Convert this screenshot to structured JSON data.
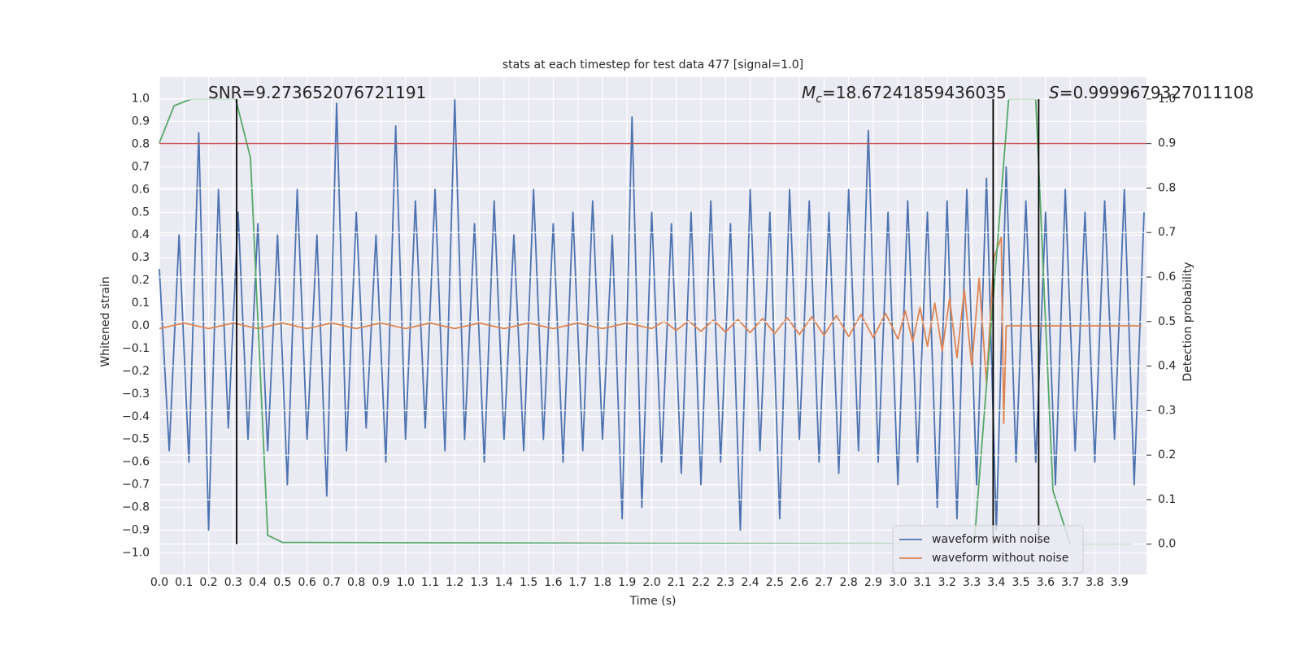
{
  "chart_data": {
    "type": "line",
    "title": "stats at each timestep for test data 477 [signal=1.0]",
    "x_label": "Time (s)",
    "y_label": "Whitened strain",
    "y2_label": "Detection probability",
    "xlim": [
      0,
      4.01
    ],
    "ylim": [
      -1.095,
      1.095
    ],
    "y2lim": [
      -0.068,
      1.049
    ],
    "grid": true,
    "legend": "lower right",
    "xticks": [
      {
        "value": 0.0,
        "label": "0.0"
      },
      {
        "value": 0.1,
        "label": "0.1"
      },
      {
        "value": 0.2,
        "label": "0.2"
      },
      {
        "value": 0.3,
        "label": "0.3"
      },
      {
        "value": 0.4,
        "label": "0.4"
      },
      {
        "value": 0.5,
        "label": "0.5"
      },
      {
        "value": 0.6,
        "label": "0.6"
      },
      {
        "value": 0.7,
        "label": "0.7"
      },
      {
        "value": 0.8,
        "label": "0.8"
      },
      {
        "value": 0.9,
        "label": "0.9"
      },
      {
        "value": 1.0,
        "label": "1.0"
      },
      {
        "value": 1.1,
        "label": "1.1"
      },
      {
        "value": 1.2,
        "label": "1.2"
      },
      {
        "value": 1.3,
        "label": "1.3"
      },
      {
        "value": 1.4,
        "label": "1.4"
      },
      {
        "value": 1.5,
        "label": "1.5"
      },
      {
        "value": 1.6,
        "label": "1.6"
      },
      {
        "value": 1.7,
        "label": "1.7"
      },
      {
        "value": 1.8,
        "label": "1.8"
      },
      {
        "value": 1.9,
        "label": "1.9"
      },
      {
        "value": 2.0,
        "label": "2.0"
      },
      {
        "value": 2.1,
        "label": "2.1"
      },
      {
        "value": 2.2,
        "label": "2.2"
      },
      {
        "value": 2.3,
        "label": "2.3"
      },
      {
        "value": 2.4,
        "label": "2.4"
      },
      {
        "value": 2.5,
        "label": "2.5"
      },
      {
        "value": 2.6,
        "label": "2.6"
      },
      {
        "value": 2.7,
        "label": "2.7"
      },
      {
        "value": 2.8,
        "label": "2.8"
      },
      {
        "value": 2.9,
        "label": "2.9"
      },
      {
        "value": 3.0,
        "label": "3.0"
      },
      {
        "value": 3.1,
        "label": "3.1"
      },
      {
        "value": 3.2,
        "label": "3.2"
      },
      {
        "value": 3.3,
        "label": "3.3"
      },
      {
        "value": 3.4,
        "label": "3.4"
      },
      {
        "value": 3.5,
        "label": "3.5"
      },
      {
        "value": 3.6,
        "label": "3.6"
      },
      {
        "value": 3.7,
        "label": "3.7"
      },
      {
        "value": 3.8,
        "label": "3.8"
      },
      {
        "value": 3.9,
        "label": "3.9"
      }
    ],
    "yticks": [
      {
        "value": -1.0,
        "label": "−1.0"
      },
      {
        "value": -0.9,
        "label": "−0.9"
      },
      {
        "value": -0.8,
        "label": "−0.8"
      },
      {
        "value": -0.7,
        "label": "−0.7"
      },
      {
        "value": -0.6,
        "label": "−0.6"
      },
      {
        "value": -0.5,
        "label": "−0.5"
      },
      {
        "value": -0.4,
        "label": "−0.4"
      },
      {
        "value": -0.3,
        "label": "−0.3"
      },
      {
        "value": -0.2,
        "label": "−0.2"
      },
      {
        "value": -0.1,
        "label": "−0.1"
      },
      {
        "value": 0.0,
        "label": "0.0"
      },
      {
        "value": 0.1,
        "label": "0.1"
      },
      {
        "value": 0.2,
        "label": "0.2"
      },
      {
        "value": 0.3,
        "label": "0.3"
      },
      {
        "value": 0.4,
        "label": "0.4"
      },
      {
        "value": 0.5,
        "label": "0.5"
      },
      {
        "value": 0.6,
        "label": "0.6"
      },
      {
        "value": 0.7,
        "label": "0.7"
      },
      {
        "value": 0.8,
        "label": "0.8"
      },
      {
        "value": 0.9,
        "label": "0.9"
      },
      {
        "value": 1.0,
        "label": "1.0"
      }
    ],
    "y2ticks": [
      {
        "value": 0.0,
        "label": "0.0"
      },
      {
        "value": 0.1,
        "label": "0.1"
      },
      {
        "value": 0.2,
        "label": "0.2"
      },
      {
        "value": 0.3,
        "label": "0.3"
      },
      {
        "value": 0.4,
        "label": "0.4"
      },
      {
        "value": 0.5,
        "label": "0.5"
      },
      {
        "value": 0.6,
        "label": "0.6"
      },
      {
        "value": 0.7,
        "label": "0.7"
      },
      {
        "value": 0.8,
        "label": "0.8"
      },
      {
        "value": 0.9,
        "label": "0.9"
      },
      {
        "value": 1.0,
        "label": "1.0"
      }
    ],
    "series": [
      {
        "name": "waveform with noise",
        "color": "#4c72b0",
        "x": [
          0,
          0.04,
          0.08,
          0.12,
          0.16,
          0.2,
          0.24,
          0.28,
          0.32,
          0.36,
          0.4,
          0.44,
          0.48,
          0.52,
          0.56,
          0.6,
          0.64,
          0.68,
          0.72,
          0.76,
          0.8,
          0.84,
          0.88,
          0.92,
          0.96,
          1.0,
          1.04,
          1.08,
          1.12,
          1.16,
          1.2,
          1.24,
          1.28,
          1.32,
          1.36,
          1.4,
          1.44,
          1.48,
          1.52,
          1.56,
          1.6,
          1.64,
          1.68,
          1.72,
          1.76,
          1.8,
          1.84,
          1.88,
          1.92,
          1.96,
          2.0,
          2.04,
          2.08,
          2.12,
          2.16,
          2.2,
          2.24,
          2.28,
          2.32,
          2.36,
          2.4,
          2.44,
          2.48,
          2.52,
          2.56,
          2.6,
          2.64,
          2.68,
          2.72,
          2.76,
          2.8,
          2.84,
          2.88,
          2.92,
          2.96,
          3.0,
          3.04,
          3.08,
          3.12,
          3.16,
          3.2,
          3.24,
          3.28,
          3.32,
          3.36,
          3.4,
          3.44,
          3.48,
          3.52,
          3.56,
          3.6,
          3.64,
          3.68,
          3.72,
          3.76,
          3.8,
          3.84,
          3.88,
          3.92,
          3.96,
          4.0
        ],
        "values": [
          0.25,
          -0.55,
          0.4,
          -0.6,
          0.85,
          -0.9,
          0.6,
          -0.45,
          0.5,
          -0.5,
          0.45,
          -0.55,
          0.4,
          -0.7,
          0.6,
          -0.5,
          0.4,
          -0.75,
          0.98,
          -0.55,
          0.5,
          -0.45,
          0.4,
          -0.6,
          0.88,
          -0.5,
          0.55,
          -0.45,
          0.6,
          -0.55,
          1.0,
          -0.5,
          0.45,
          -0.6,
          0.55,
          -0.5,
          0.4,
          -0.55,
          0.6,
          -0.5,
          0.45,
          -0.6,
          0.5,
          -0.55,
          0.55,
          -0.5,
          0.4,
          -0.85,
          0.92,
          -0.8,
          0.5,
          -0.6,
          0.45,
          -0.65,
          0.5,
          -0.7,
          0.55,
          -0.6,
          0.45,
          -0.9,
          0.6,
          -0.55,
          0.5,
          -0.85,
          0.6,
          -0.5,
          0.55,
          -0.6,
          0.5,
          -0.65,
          0.6,
          -0.55,
          0.86,
          -0.6,
          0.5,
          -0.7,
          0.55,
          -0.6,
          0.5,
          -0.8,
          0.55,
          -0.85,
          0.6,
          -0.7,
          0.65,
          -0.9,
          0.7,
          -0.6,
          0.55,
          -0.6,
          0.5,
          -0.7,
          0.6,
          -0.55,
          0.5,
          -0.6,
          0.55,
          -0.5,
          0.6,
          -0.7,
          0.5
        ]
      },
      {
        "name": "waveform without noise",
        "color": "#dd8452",
        "x": [
          0,
          0.1,
          0.2,
          0.3,
          0.4,
          0.5,
          0.6,
          0.7,
          0.8,
          0.9,
          1.0,
          1.1,
          1.2,
          1.3,
          1.4,
          1.5,
          1.6,
          1.7,
          1.8,
          1.9,
          2.0,
          2.05,
          2.1,
          2.15,
          2.2,
          2.25,
          2.3,
          2.35,
          2.4,
          2.45,
          2.5,
          2.55,
          2.6,
          2.65,
          2.7,
          2.75,
          2.8,
          2.85,
          2.9,
          2.95,
          3.0,
          3.03,
          3.06,
          3.09,
          3.12,
          3.15,
          3.18,
          3.21,
          3.24,
          3.27,
          3.3,
          3.33,
          3.36,
          3.39,
          3.42,
          3.43,
          3.44,
          3.99
        ],
        "values": [
          -0.012,
          0.012,
          -0.012,
          0.012,
          -0.012,
          0.012,
          -0.012,
          0.012,
          -0.012,
          0.012,
          -0.012,
          0.012,
          -0.012,
          0.012,
          -0.012,
          0.012,
          -0.012,
          0.012,
          -0.012,
          0.012,
          -0.012,
          0.02,
          -0.02,
          0.022,
          -0.024,
          0.025,
          -0.027,
          0.028,
          -0.03,
          0.032,
          -0.034,
          0.036,
          -0.038,
          0.04,
          -0.042,
          0.045,
          -0.047,
          0.05,
          -0.052,
          0.055,
          -0.058,
          0.065,
          -0.07,
          0.08,
          -0.09,
          0.1,
          -0.11,
          0.12,
          -0.14,
          0.16,
          -0.18,
          0.21,
          -0.25,
          0.3,
          0.39,
          -0.43,
          0,
          0
        ]
      },
      {
        "color": "#55a868",
        "axis": "y2",
        "x": [
          0,
          0.06,
          0.13,
          0.31,
          0.37,
          0.44,
          0.5,
          3.31,
          3.45,
          3.56,
          3.63,
          3.7,
          3.95
        ],
        "values": [
          0.9015,
          0.985,
          1.0,
          1.0,
          0.868,
          0.02,
          0.004,
          0.0,
          1.0,
          1.0,
          0.12,
          0.0,
          0.0
        ]
      }
    ],
    "hlines": [
      {
        "value": 0.9,
        "axis": "y2",
        "color": "#c44e52"
      }
    ],
    "vlines": [
      {
        "value": 0.314,
        "ymin": 0,
        "ymax": 1,
        "axis": "y2",
        "color": "#000000"
      },
      {
        "value": 3.387,
        "ymin": 0,
        "ymax": 1,
        "axis": "y2",
        "color": "#000000"
      },
      {
        "value": 3.572,
        "ymin": 0,
        "ymax": 1,
        "axis": "y2",
        "color": "#000000"
      }
    ],
    "annotations": [
      {
        "text": "SNR=9.273652076721191"
      },
      {
        "symbol": "M",
        "subscript": "c",
        "text": "=18.67241859436035"
      },
      {
        "symbol": "S",
        "text": "=0.9999679327011108"
      }
    ]
  }
}
